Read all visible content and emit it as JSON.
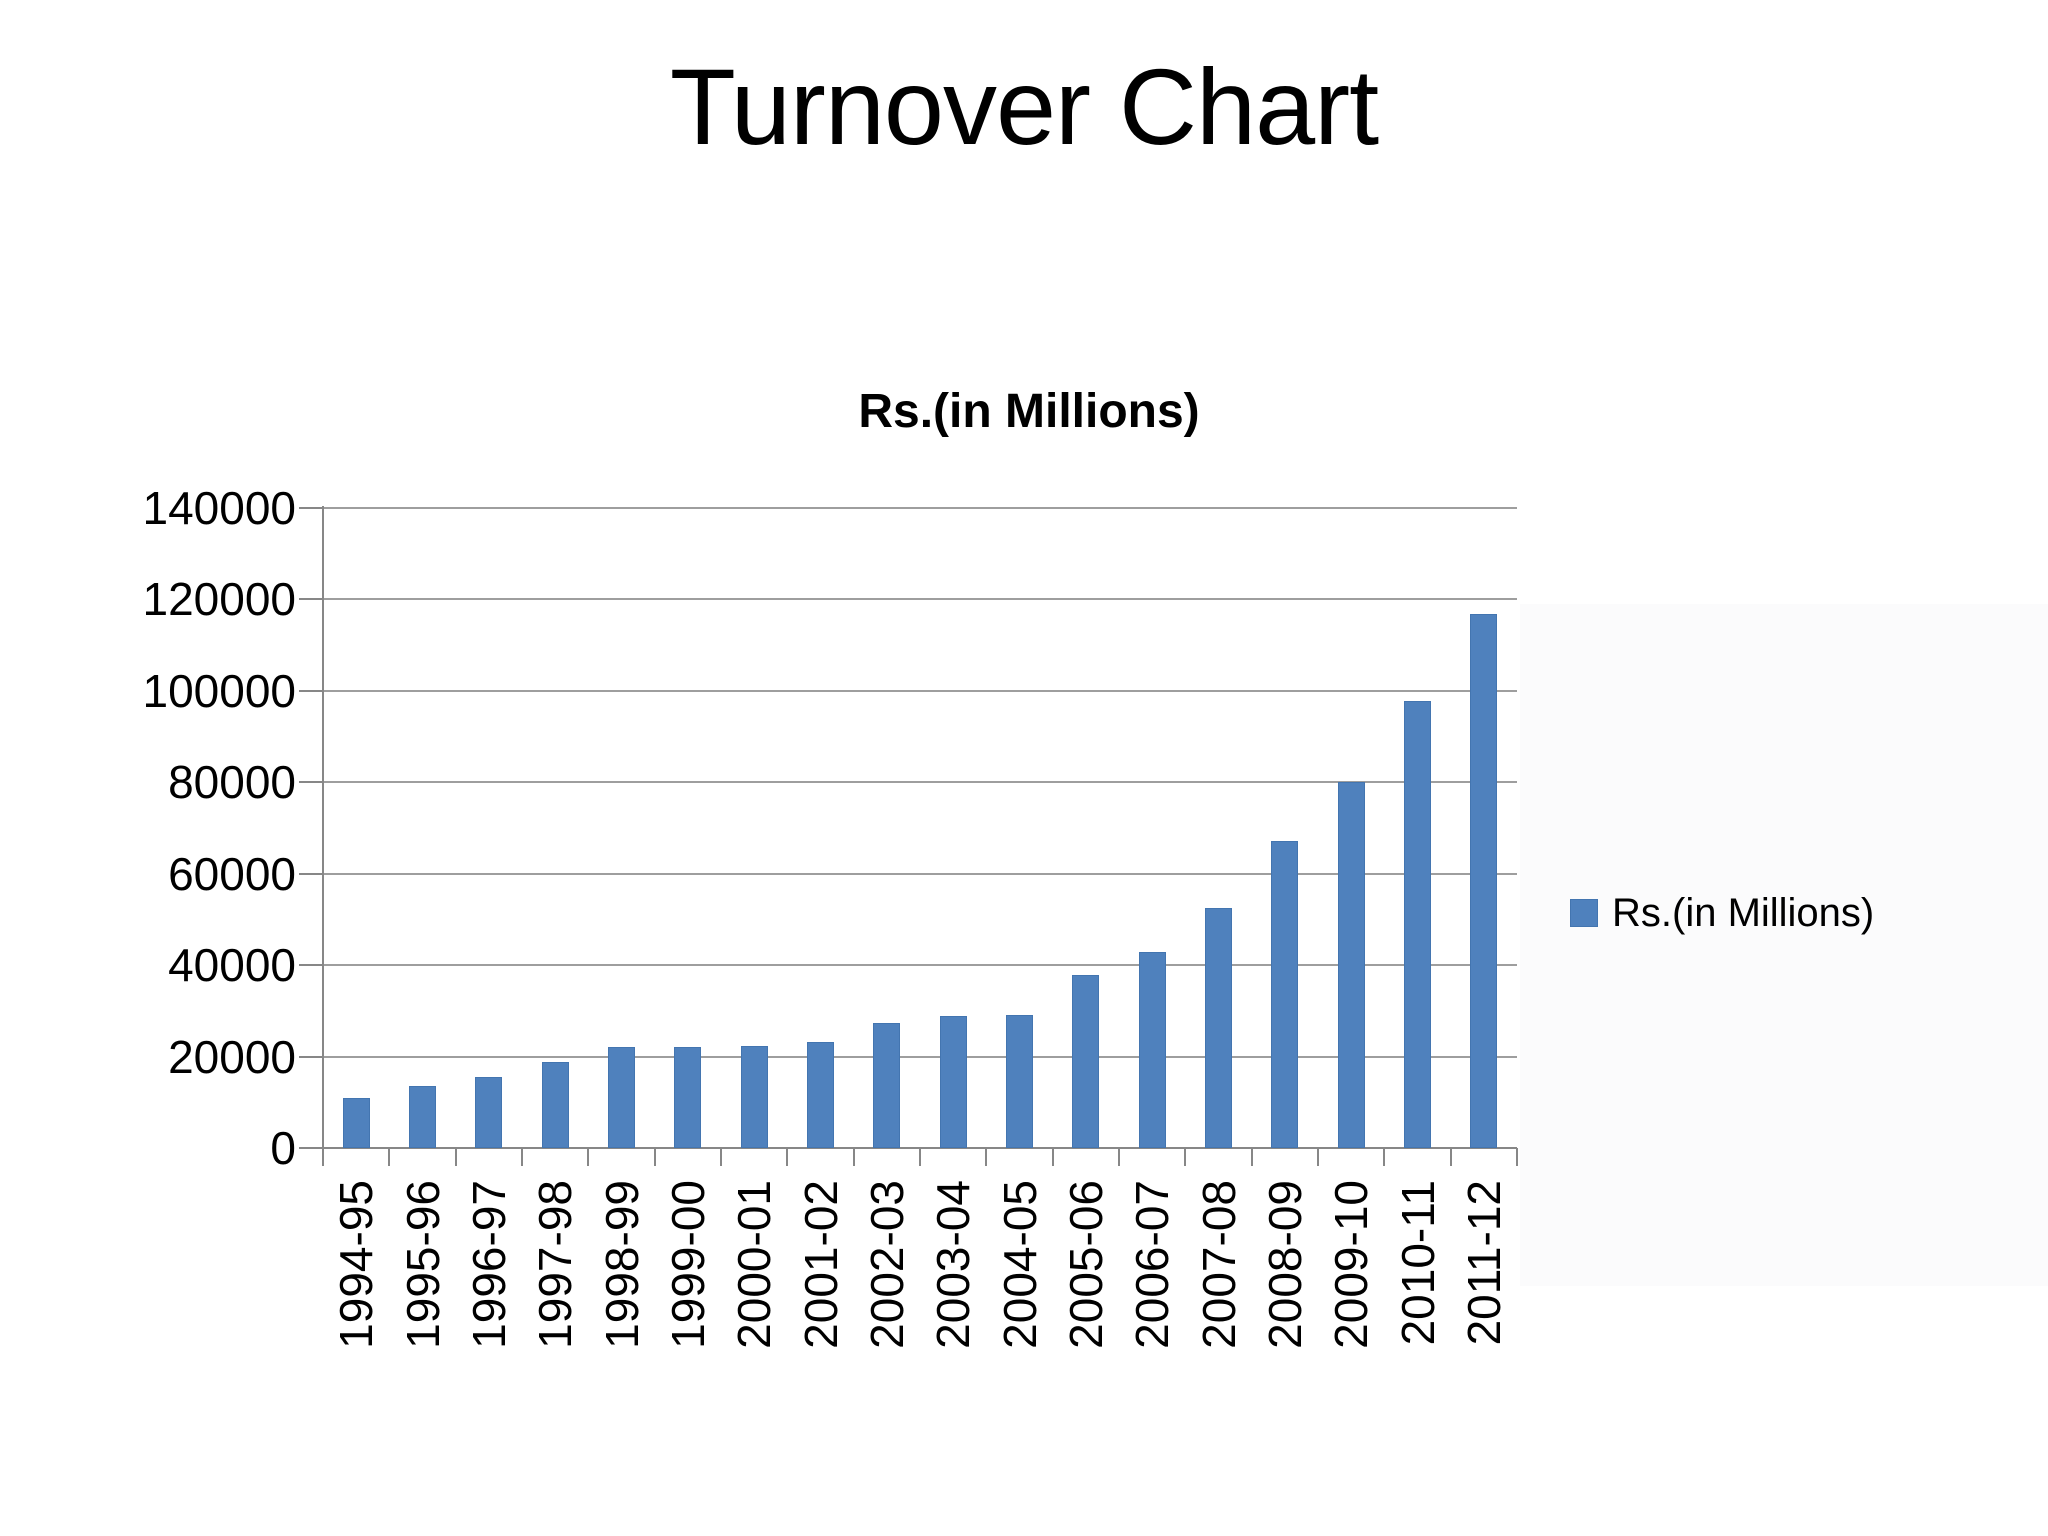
{
  "slide": {
    "title": "Turnover Chart"
  },
  "chart": {
    "subtitle": "Rs.(in Millions)",
    "legend": {
      "label": "Rs.(in Millions)"
    }
  },
  "chart_data": {
    "type": "bar",
    "title": "Rs.(in Millions)",
    "categories": [
      "1994-95",
      "1995-96",
      "1996-97",
      "1997-98",
      "1998-99",
      "1999-00",
      "2000-01",
      "2001-02",
      "2002-03",
      "2003-04",
      "2004-05",
      "2005-06",
      "2006-07",
      "2007-08",
      "2008-09",
      "2009-10",
      "2010-11",
      "2011-12"
    ],
    "series": [
      {
        "name": "Rs.(in Millions)",
        "values": [
          11000,
          13600,
          15500,
          18800,
          22000,
          22000,
          22400,
          23200,
          27400,
          28900,
          29200,
          37800,
          42800,
          52500,
          67200,
          80000,
          97700,
          116800
        ]
      }
    ],
    "xlabel": "",
    "ylabel": "",
    "ylim": [
      0,
      140000
    ],
    "ytick_step": 20000,
    "yticks": [
      0,
      20000,
      40000,
      60000,
      80000,
      100000,
      120000,
      140000
    ],
    "grid": true,
    "legend_position": "right",
    "colors": {
      "bar": "#4F81BD",
      "gridline": "#9e9e9e",
      "axis": "#878787",
      "text": "#000000"
    }
  }
}
